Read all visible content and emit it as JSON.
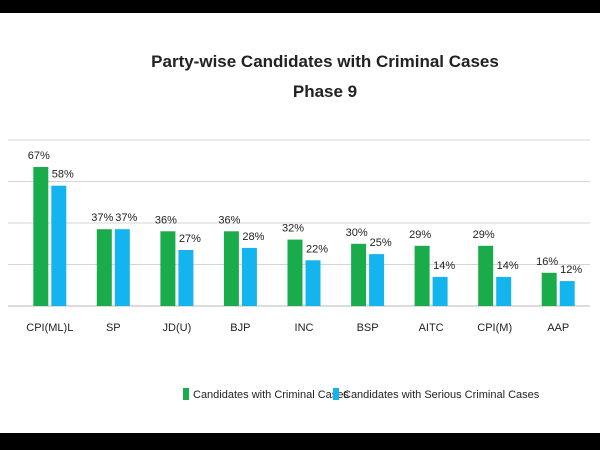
{
  "chart_data": {
    "type": "bar",
    "title": "Party-wise Candidates with Criminal Cases",
    "subtitle": "Phase 9",
    "xlabel": "",
    "ylabel": "",
    "categories": [
      "CPI(ML)L",
      "SP",
      "JD(U)",
      "BJP",
      "INC",
      "BSP",
      "AITC",
      "CPI(M)",
      "AAP"
    ],
    "series": [
      {
        "name": "Candidates with Criminal Cases",
        "color": "#1aab4b",
        "values": [
          67,
          37,
          36,
          36,
          32,
          30,
          29,
          29,
          16
        ],
        "labels": [
          "67%",
          "37%",
          "36%",
          "36%",
          "32%",
          "30%",
          "29%",
          "29%",
          "16%"
        ]
      },
      {
        "name": "Candidates with Serious Criminal Cases",
        "color": "#14b4ee",
        "values": [
          58,
          37,
          27,
          28,
          22,
          25,
          14,
          14,
          12
        ],
        "labels": [
          "58%",
          "37%",
          "27%",
          "28%",
          "22%",
          "25%",
          "14%",
          "14%",
          "12%"
        ]
      }
    ],
    "ylim": [
      0,
      80
    ],
    "gridlines": [
      0,
      20,
      40,
      60,
      80
    ],
    "grid": true,
    "legend": "bottom"
  }
}
